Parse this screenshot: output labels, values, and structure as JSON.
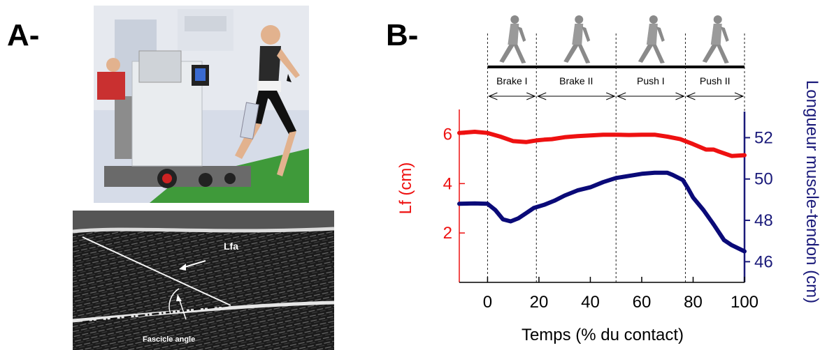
{
  "panels": {
    "a_label": "A-",
    "b_label": "B-"
  },
  "ultrasound": {
    "lfa_label": "Lfa",
    "angle_label": "Fascicle angle"
  },
  "colors": {
    "lf_series": "#ee1111",
    "length_series": "#0a0a78",
    "right_axis": "#1a1a7a"
  },
  "chart_data": {
    "type": "line",
    "xlabel": "Temps (% du contact)",
    "ylabel": "Lf (cm)",
    "y2label": "Longueur muscle-tendon (cm)",
    "xlim": [
      -11,
      100
    ],
    "ylim": [
      0,
      7.2
    ],
    "y2lim": [
      45,
      53.6
    ],
    "xticks": [
      0,
      20,
      40,
      60,
      80,
      100
    ],
    "yticks": [
      2,
      4,
      6
    ],
    "y2ticks": [
      46,
      48,
      50,
      52
    ],
    "phases": [
      {
        "name": "Brake I",
        "start": 0,
        "end": 19
      },
      {
        "name": "Brake II",
        "start": 19,
        "end": 50
      },
      {
        "name": "Push I",
        "start": 50,
        "end": 77
      },
      {
        "name": "Push II",
        "start": 77,
        "end": 100
      }
    ],
    "phase_boundaries": [
      0,
      19,
      50,
      77,
      100
    ],
    "series": [
      {
        "axis": "left",
        "x": [
          -11,
          -5,
          0,
          5,
          10,
          15,
          19,
          22,
          25,
          30,
          35,
          40,
          45,
          50,
          55,
          60,
          65,
          70,
          75,
          80,
          85,
          88,
          90,
          95,
          100
        ],
        "values": [
          6.05,
          6.1,
          6.05,
          5.9,
          5.72,
          5.68,
          5.75,
          5.78,
          5.8,
          5.88,
          5.92,
          5.95,
          5.98,
          5.98,
          5.97,
          5.98,
          5.98,
          5.9,
          5.8,
          5.6,
          5.38,
          5.38,
          5.3,
          5.12,
          5.15
        ]
      },
      {
        "axis": "right",
        "x": [
          -11,
          -5,
          0,
          3,
          6,
          9,
          12,
          15,
          18,
          22,
          26,
          30,
          35,
          40,
          45,
          50,
          55,
          60,
          65,
          70,
          72,
          76,
          78,
          80,
          84,
          88,
          92,
          95,
          100
        ],
        "values": [
          48.8,
          48.82,
          48.8,
          48.5,
          48.05,
          47.95,
          48.1,
          48.35,
          48.6,
          48.75,
          48.95,
          49.2,
          49.45,
          49.6,
          49.85,
          50.05,
          50.15,
          50.25,
          50.3,
          50.3,
          50.2,
          49.95,
          49.55,
          49.1,
          48.5,
          47.8,
          47.05,
          46.8,
          46.5
        ]
      }
    ]
  }
}
